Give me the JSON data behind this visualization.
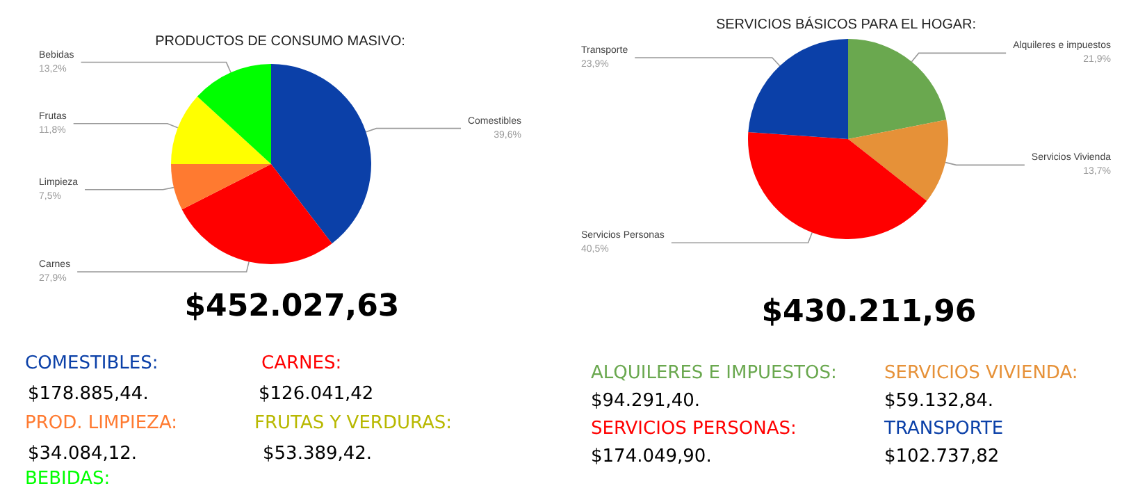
{
  "chart_data": [
    {
      "type": "pie",
      "title": "PRODUCTOS DE CONSUMO MASIVO:",
      "categories": [
        "Comestibles",
        "Carnes",
        "Limpieza",
        "Frutas",
        "Bebidas"
      ],
      "values": [
        39.6,
        27.9,
        7.5,
        11.8,
        13.2
      ],
      "value_labels": [
        "39,6%",
        "27,9%",
        "7,5%",
        "11,8%",
        "13,2%"
      ],
      "colors": [
        "#0b40a8",
        "#ff0000",
        "#ff7a30",
        "#ffff00",
        "#00ff00"
      ],
      "legend": false,
      "annotations": [
        "$452.027,63",
        "COMESTIBLES:",
        "$178.885,44.",
        "CARNES:",
        "$126.041,42",
        "PROD. LIMPIEZA:",
        "FRUTAS Y VERDURAS:",
        "$34.084,12.",
        "$53.389,42.",
        "BEBIDAS:"
      ]
    },
    {
      "type": "pie",
      "title": "SERVICIOS BÁSICOS PARA EL HOGAR:",
      "categories": [
        "Alquileres e impuestos",
        "Servicios Vivienda",
        "Servicios Personas",
        "Transporte"
      ],
      "values": [
        21.9,
        13.7,
        40.5,
        23.9
      ],
      "value_labels": [
        "21,9%",
        "13,7%",
        "40,5%",
        "23,9%"
      ],
      "colors": [
        "#6aa84f",
        "#e69138",
        "#ff0000",
        "#0b40a8"
      ],
      "legend": false,
      "annotations": [
        "$430.211,96",
        "ALQUILERES E IMPUESTOS:",
        "SERVICIOS VIVIENDA:",
        "$94.291,40.",
        "$59.132,84.",
        "SERVICIOS PERSONAS:",
        "TRANSPORTE",
        "$174.049,90.",
        "$102.737,82"
      ]
    }
  ]
}
